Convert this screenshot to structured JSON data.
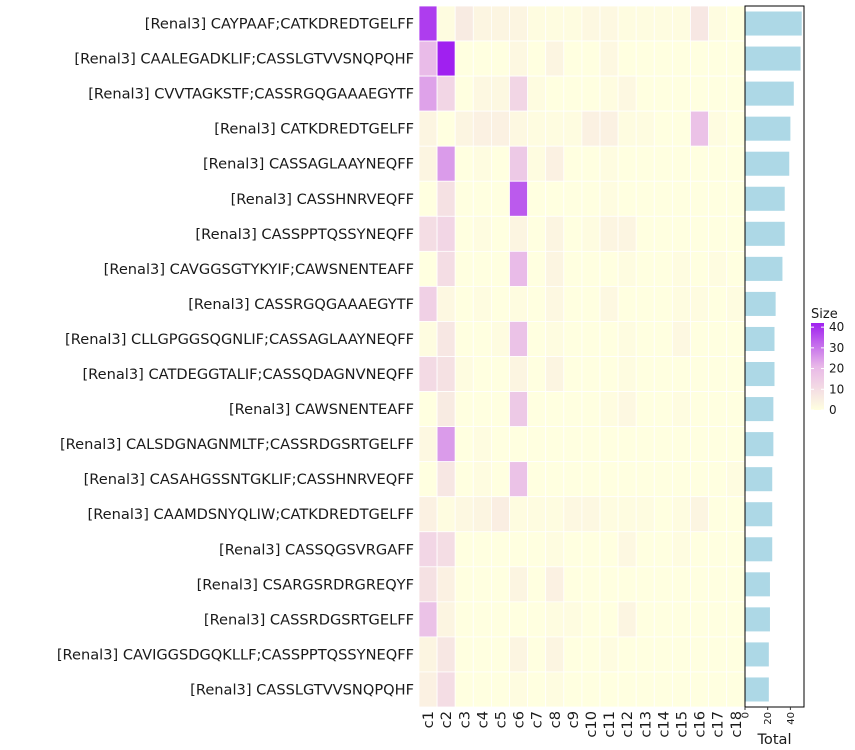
{
  "chart_data": {
    "type": "heatmap",
    "title": "",
    "rows": [
      "[Renal3] CAYPAAF;CATKDREDTGELFF",
      "[Renal3] CAALEGADKLIF;CASSLGTVVSNQPQHF",
      "[Renal3] CVVTAGKSTF;CASSRGQGAAAEGYTF",
      "[Renal3] CATKDREDTGELFF",
      "[Renal3] CASSAGLAAYNEQFF",
      "[Renal3] CASSHNRVEQFF",
      "[Renal3] CASSPPTQSSYNEQFF",
      "[Renal3] CAVGGSGTYKYIF;CAWSNENTEAFF",
      "[Renal3] CASSRGQGAAAEGYTF",
      "[Renal3] CLLGPGGSQGNLIF;CASSAGLAAYNEQFF",
      "[Renal3] CATDEGGTALIF;CASSQDAGNVNEQFF",
      "[Renal3] CAWSNENTEAFF",
      "[Renal3] CALSDGNAGNMLTF;CASSRDGSRTGELFF",
      "[Renal3] CASAHGSSNTGKLIF;CASSHNRVEQFF",
      "[Renal3] CAAMDSNYQLIW;CATKDREDTGELFF",
      "[Renal3] CASSQGSVRGAFF",
      "[Renal3] CSARGSRDRGREQYF",
      "[Renal3] CASSRDGSRTGELFF",
      "[Renal3] CAVIGGSDGQKLLF;CASSPPTQSSYNEQFF",
      "[Renal3] CASSLGTVVSNQPQHF"
    ],
    "columns": [
      "c1",
      "c2",
      "c3",
      "c4",
      "c5",
      "c6",
      "c7",
      "c8",
      "c9",
      "c10",
      "c11",
      "c12",
      "c13",
      "c14",
      "c15",
      "c16",
      "c17",
      "c18"
    ],
    "values": [
      [
        38,
        1,
        6,
        3,
        3,
        3,
        1,
        1,
        1,
        2,
        2,
        1,
        1,
        1,
        1,
        7,
        1,
        0
      ],
      [
        20,
        42,
        0,
        0,
        0,
        2,
        0,
        3,
        0,
        0,
        2,
        0,
        0,
        0,
        0,
        0,
        0,
        0
      ],
      [
        24,
        12,
        0,
        2,
        2,
        12,
        1,
        0,
        0,
        0,
        1,
        2,
        0,
        0,
        0,
        0,
        0,
        0
      ],
      [
        3,
        0,
        3,
        4,
        4,
        2,
        1,
        1,
        1,
        4,
        4,
        1,
        1,
        0,
        0,
        18,
        1,
        0
      ],
      [
        3,
        25,
        0,
        1,
        0,
        16,
        1,
        4,
        0,
        0,
        1,
        0,
        0,
        0,
        0,
        0,
        0,
        0
      ],
      [
        0,
        9,
        0,
        0,
        0,
        34,
        0,
        0,
        0,
        0,
        1,
        0,
        0,
        0,
        0,
        0,
        0,
        0
      ],
      [
        10,
        12,
        0,
        1,
        0,
        3,
        0,
        3,
        0,
        1,
        3,
        3,
        0,
        0,
        0,
        0,
        0,
        0
      ],
      [
        0,
        10,
        0,
        0,
        0,
        20,
        0,
        3,
        0,
        0,
        0,
        1,
        0,
        0,
        1,
        0,
        1,
        0
      ],
      [
        14,
        2,
        0,
        1,
        0,
        1,
        0,
        2,
        0,
        0,
        2,
        0,
        0,
        0,
        1,
        1,
        0,
        1
      ],
      [
        1,
        7,
        0,
        0,
        1,
        18,
        0,
        1,
        0,
        0,
        0,
        1,
        0,
        0,
        2,
        0,
        0,
        0
      ],
      [
        11,
        9,
        1,
        0,
        0,
        3,
        0,
        3,
        0,
        0,
        0,
        1,
        0,
        0,
        0,
        0,
        0,
        0
      ],
      [
        0,
        6,
        0,
        0,
        0,
        16,
        0,
        0,
        0,
        0,
        1,
        2,
        0,
        0,
        1,
        0,
        0,
        0
      ],
      [
        2,
        25,
        0,
        1,
        0,
        0,
        0,
        0,
        0,
        0,
        0,
        0,
        0,
        0,
        0,
        0,
        0,
        0
      ],
      [
        0,
        7,
        0,
        1,
        0,
        18,
        0,
        0,
        0,
        0,
        0,
        0,
        0,
        0,
        0,
        0,
        0,
        1
      ],
      [
        4,
        1,
        2,
        3,
        5,
        1,
        1,
        1,
        2,
        2,
        1,
        1,
        1,
        0,
        1,
        3,
        0,
        0
      ],
      [
        12,
        10,
        0,
        0,
        0,
        0,
        0,
        1,
        0,
        0,
        0,
        2,
        0,
        0,
        1,
        0,
        0,
        0
      ],
      [
        9,
        4,
        0,
        0,
        0,
        3,
        0,
        4,
        0,
        0,
        0,
        0,
        0,
        0,
        0,
        0,
        0,
        0
      ],
      [
        18,
        3,
        0,
        0,
        0,
        0,
        0,
        1,
        1,
        0,
        0,
        3,
        0,
        0,
        0,
        0,
        0,
        0
      ],
      [
        3,
        7,
        0,
        0,
        0,
        3,
        0,
        3,
        0,
        0,
        1,
        0,
        0,
        0,
        0,
        0,
        0,
        0
      ],
      [
        4,
        10,
        0,
        0,
        0,
        1,
        0,
        1,
        0,
        0,
        0,
        0,
        0,
        0,
        0,
        0,
        0,
        0
      ]
    ],
    "colorscale": {
      "low": "#FFFFE0",
      "mid": "#E8B8E8",
      "high": "#A020F0"
    },
    "legend": {
      "title": "Size",
      "ticks": [
        0,
        10,
        20,
        30,
        40
      ],
      "range": [
        0,
        42
      ],
      "position": "right"
    },
    "totals": {
      "label": "Total",
      "bar_color": "#ADD8E6",
      "values": [
        50,
        49,
        43,
        40,
        39,
        35,
        35,
        33,
        27,
        26,
        26,
        25,
        25,
        24,
        24,
        24,
        22,
        22,
        21,
        21
      ],
      "ticks": [
        0,
        20,
        40
      ],
      "xlim": [
        0,
        52
      ]
    }
  }
}
